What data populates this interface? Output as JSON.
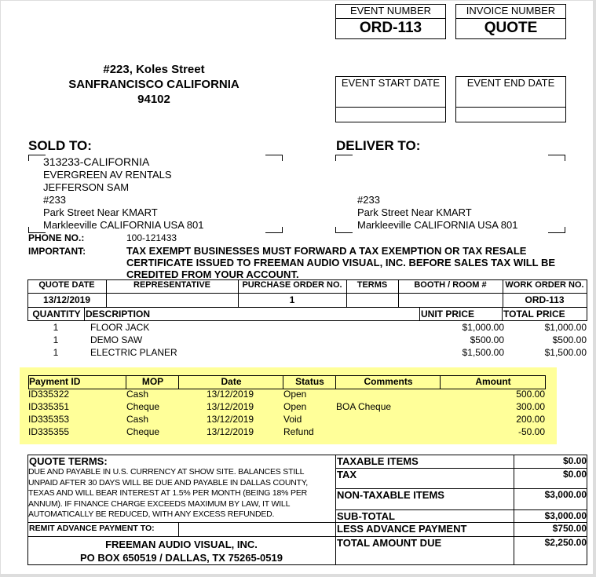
{
  "header": {
    "event_number_label": "EVENT NUMBER",
    "event_number": "ORD-113",
    "invoice_number_label": "INVOICE NUMBER",
    "invoice_number": "QUOTE",
    "event_start_label": "EVENT START DATE",
    "event_end_label": "EVENT END DATE"
  },
  "company_address": [
    "#223, Koles Street",
    "SANFRANCISCO CALIFORNIA",
    "94102"
  ],
  "sold_to": {
    "label": "SOLD TO:",
    "lines": [
      "313233-CALIFORNIA",
      "EVERGREEN AV RENTALS",
      "JEFFERSON SAM",
      "#233",
      "Park Street Near KMART",
      "Markleeville CALIFORNIA  USA 801"
    ]
  },
  "deliver_to": {
    "label": "DELIVER TO:",
    "lines": [
      "#233",
      "Park Street Near KMART",
      "Markleeville CALIFORNIA  USA 801"
    ]
  },
  "phone": {
    "label": "PHONE NO.:",
    "value": "100-121433"
  },
  "important": {
    "label": "IMPORTANT:",
    "lines": [
      "TAX EXEMPT BUSINESSES MUST FORWARD A TAX EXEMPTION OR TAX RESALE",
      "CERTIFICATE ISSUED TO FREEMAN AUDIO VISUAL, INC. BEFORE SALES TAX WILL BE",
      "CREDITED FROM YOUR ACCOUNT."
    ]
  },
  "order_info": {
    "headers": [
      "QUOTE DATE",
      "REPRESENTATIVE",
      "PURCHASE ORDER NO.",
      "TERMS",
      "BOOTH / ROOM #",
      "WORK ORDER NO."
    ],
    "values": [
      "13/12/2019",
      "",
      "1",
      "",
      "",
      "ORD-113"
    ]
  },
  "items": {
    "headers": [
      "QUANTITY",
      "DESCRIPTION",
      "UNIT PRICE",
      "TOTAL PRICE"
    ],
    "rows": [
      [
        "1",
        "FLOOR JACK",
        "$1,000.00",
        "$1,000.00"
      ],
      [
        "1",
        "DEMO SAW",
        "$500.00",
        "$500.00"
      ],
      [
        "1",
        "ELECTRIC PLANER",
        "$1,500.00",
        "$1,500.00"
      ]
    ]
  },
  "payments": {
    "highlight_color": "#ffff99",
    "headers": [
      "Payment ID",
      "MOP",
      "Date",
      "Status",
      "Comments",
      "Amount"
    ],
    "rows": [
      [
        "ID335322",
        "Cash",
        "13/12/2019",
        "Open",
        "",
        "500.00"
      ],
      [
        "ID335351",
        "Cheque",
        "13/12/2019",
        "Open",
        "BOA Cheque",
        "300.00"
      ],
      [
        "ID335353",
        "Cash",
        "13/12/2019",
        "Void",
        "",
        "200.00"
      ],
      [
        "ID335355",
        "Cheque",
        "13/12/2019",
        "Refund",
        "",
        "-50.00"
      ]
    ]
  },
  "terms": {
    "label": "QUOTE TERMS:",
    "lines": [
      "DUE AND PAYABLE IN U.S. CURRENCY AT SHOW SITE. BALANCES STILL",
      "UNPAID AFTER 30 DAYS WILL BE DUE AND PAYABLE  IN DALLAS COUNTY,",
      "TEXAS AND WILL BEAR INTEREST AT 1.5% PER MONTH (BEING 18% PER",
      "ANNUM).   IF FINANCE CHARGE EXCEEDS MAXIMUM BY  LAW, IT WILL",
      "AUTOMATICALLY BE REDUCED, WITH ANY EXCESS REFUNDED."
    ],
    "remit_label": "REMIT ADVANCE PAYMENT TO:",
    "remit_lines": [
      "FREEMAN AUDIO VISUAL, INC.",
      "PO BOX 650519 / DALLAS, TX 75265-0519"
    ]
  },
  "totals": [
    [
      "TAXABLE ITEMS",
      "$0.00"
    ],
    [
      "TAX",
      "$0.00"
    ],
    [
      "NON-TAXABLE  ITEMS",
      "$3,000.00"
    ],
    [
      "SUB-TOTAL",
      "$3,000.00"
    ],
    [
      "LESS ADVANCE  PAYMENT",
      "$750.00"
    ],
    [
      "TOTAL AMOUNT DUE",
      "$2,250.00"
    ]
  ]
}
